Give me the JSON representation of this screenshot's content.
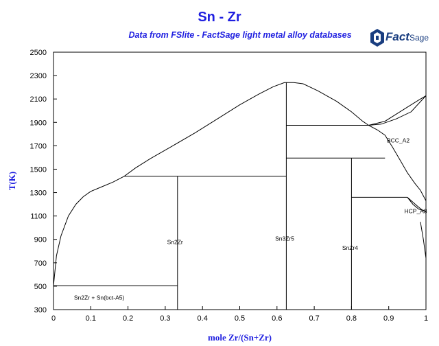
{
  "chart_data": {
    "type": "line",
    "title": "Sn - Zr",
    "subtitle": "Data from FSlite - FactSage light metal alloy databases",
    "xlabel": "mole Zr/(Sn+Zr)",
    "ylabel": "T(K)",
    "xlim": [
      0,
      1
    ],
    "ylim": [
      300,
      2500
    ],
    "xticks": [
      0,
      0.1,
      0.2,
      0.3,
      0.4,
      0.5,
      0.6,
      0.7,
      0.8,
      0.9,
      1
    ],
    "xtick_labels": [
      "0",
      "0.1",
      "0.2",
      "0.3",
      "0.4",
      "0.5",
      "0.6",
      "0.7",
      "0.8",
      "0.9",
      "1"
    ],
    "yticks": [
      300,
      500,
      700,
      900,
      1100,
      1300,
      1500,
      1700,
      1900,
      2100,
      2300,
      2500
    ],
    "ytick_labels": [
      "300",
      "500",
      "700",
      "900",
      "1100",
      "1300",
      "1500",
      "1700",
      "1900",
      "2100",
      "2300",
      "2500"
    ],
    "series": [
      {
        "values": [
          [
            0,
            505
          ],
          [
            0.003,
            600
          ],
          [
            0.008,
            760
          ],
          [
            0.02,
            930
          ],
          [
            0.04,
            1100
          ],
          [
            0.06,
            1200
          ],
          [
            0.08,
            1265
          ],
          [
            0.1,
            1310
          ],
          [
            0.13,
            1350
          ],
          [
            0.16,
            1390
          ],
          [
            0.19,
            1440
          ]
        ]
      },
      {
        "values": [
          [
            0.19,
            1440
          ],
          [
            0.22,
            1510
          ],
          [
            0.26,
            1590
          ],
          [
            0.32,
            1700
          ],
          [
            0.38,
            1810
          ],
          [
            0.44,
            1930
          ],
          [
            0.5,
            2050
          ],
          [
            0.55,
            2140
          ],
          [
            0.59,
            2205
          ],
          [
            0.62,
            2240
          ],
          [
            0.645,
            2240
          ],
          [
            0.67,
            2230
          ],
          [
            0.71,
            2170
          ],
          [
            0.76,
            2080
          ],
          [
            0.8,
            1990
          ],
          [
            0.83,
            1910
          ],
          [
            0.846,
            1875
          ]
        ]
      },
      {
        "values": [
          [
            0.846,
            1875
          ],
          [
            0.87,
            1835
          ],
          [
            0.89,
            1790
          ],
          [
            0.91,
            1690
          ],
          [
            0.93,
            1580
          ],
          [
            0.95,
            1470
          ],
          [
            0.97,
            1380
          ],
          [
            0.985,
            1320
          ],
          [
            1,
            1230
          ]
        ]
      },
      {
        "values": [
          [
            0.846,
            1875
          ],
          [
            0.89,
            1910
          ],
          [
            0.92,
            1970
          ],
          [
            0.95,
            2030
          ],
          [
            0.98,
            2090
          ],
          [
            1,
            2128
          ]
        ]
      },
      {
        "values": [
          [
            0.846,
            1875
          ],
          [
            0.88,
            1885
          ],
          [
            0.92,
            1930
          ],
          [
            0.96,
            1990
          ],
          [
            1,
            2128
          ]
        ]
      },
      {
        "values": [
          [
            0.95,
            1260
          ],
          [
            0.965,
            1200
          ],
          [
            0.98,
            1160
          ],
          [
            1,
            1140
          ]
        ]
      },
      {
        "values": [
          [
            0.95,
            1260
          ],
          [
            0.975,
            1190
          ],
          [
            0.99,
            1150
          ],
          [
            1,
            1135
          ]
        ]
      },
      {
        "values": [
          [
            0.985,
            1050
          ],
          [
            0.993,
            900
          ],
          [
            1,
            740
          ]
        ]
      },
      {
        "values": [
          [
            0.993,
            1150
          ],
          [
            1,
            1140
          ]
        ]
      },
      {
        "values": [
          [
            0,
            505
          ],
          [
            0.333,
            505
          ]
        ]
      },
      {
        "values": [
          [
            0.19,
            1440
          ],
          [
            0.625,
            1440
          ]
        ]
      },
      {
        "values": [
          [
            0.333,
            300
          ],
          [
            0.333,
            1440
          ]
        ]
      },
      {
        "values": [
          [
            0.625,
            300
          ],
          [
            0.625,
            2240
          ]
        ]
      },
      {
        "values": [
          [
            0.625,
            1875
          ],
          [
            0.846,
            1875
          ]
        ]
      },
      {
        "values": [
          [
            0.625,
            1595
          ],
          [
            0.89,
            1595
          ]
        ]
      },
      {
        "values": [
          [
            0.8,
            300
          ],
          [
            0.8,
            1595
          ]
        ]
      },
      {
        "values": [
          [
            0.8,
            1260
          ],
          [
            0.95,
            1260
          ]
        ]
      }
    ],
    "annotations": [
      {
        "text": "Sn2Zr + Sn(bct-A5)",
        "x": 0.055,
        "y": 385
      },
      {
        "text": "Sn2Zr",
        "x": 0.305,
        "y": 860
      },
      {
        "text": "Sn3Zr5",
        "x": 0.595,
        "y": 890
      },
      {
        "text": "SnZr4",
        "x": 0.775,
        "y": 810
      },
      {
        "text": "BCC_A2",
        "x": 0.895,
        "y": 1730
      },
      {
        "text": "HCP_A3",
        "x": 0.942,
        "y": 1125
      }
    ],
    "grid": false,
    "logo": {
      "text": "FactSage",
      "color": "#1a3e80"
    }
  }
}
